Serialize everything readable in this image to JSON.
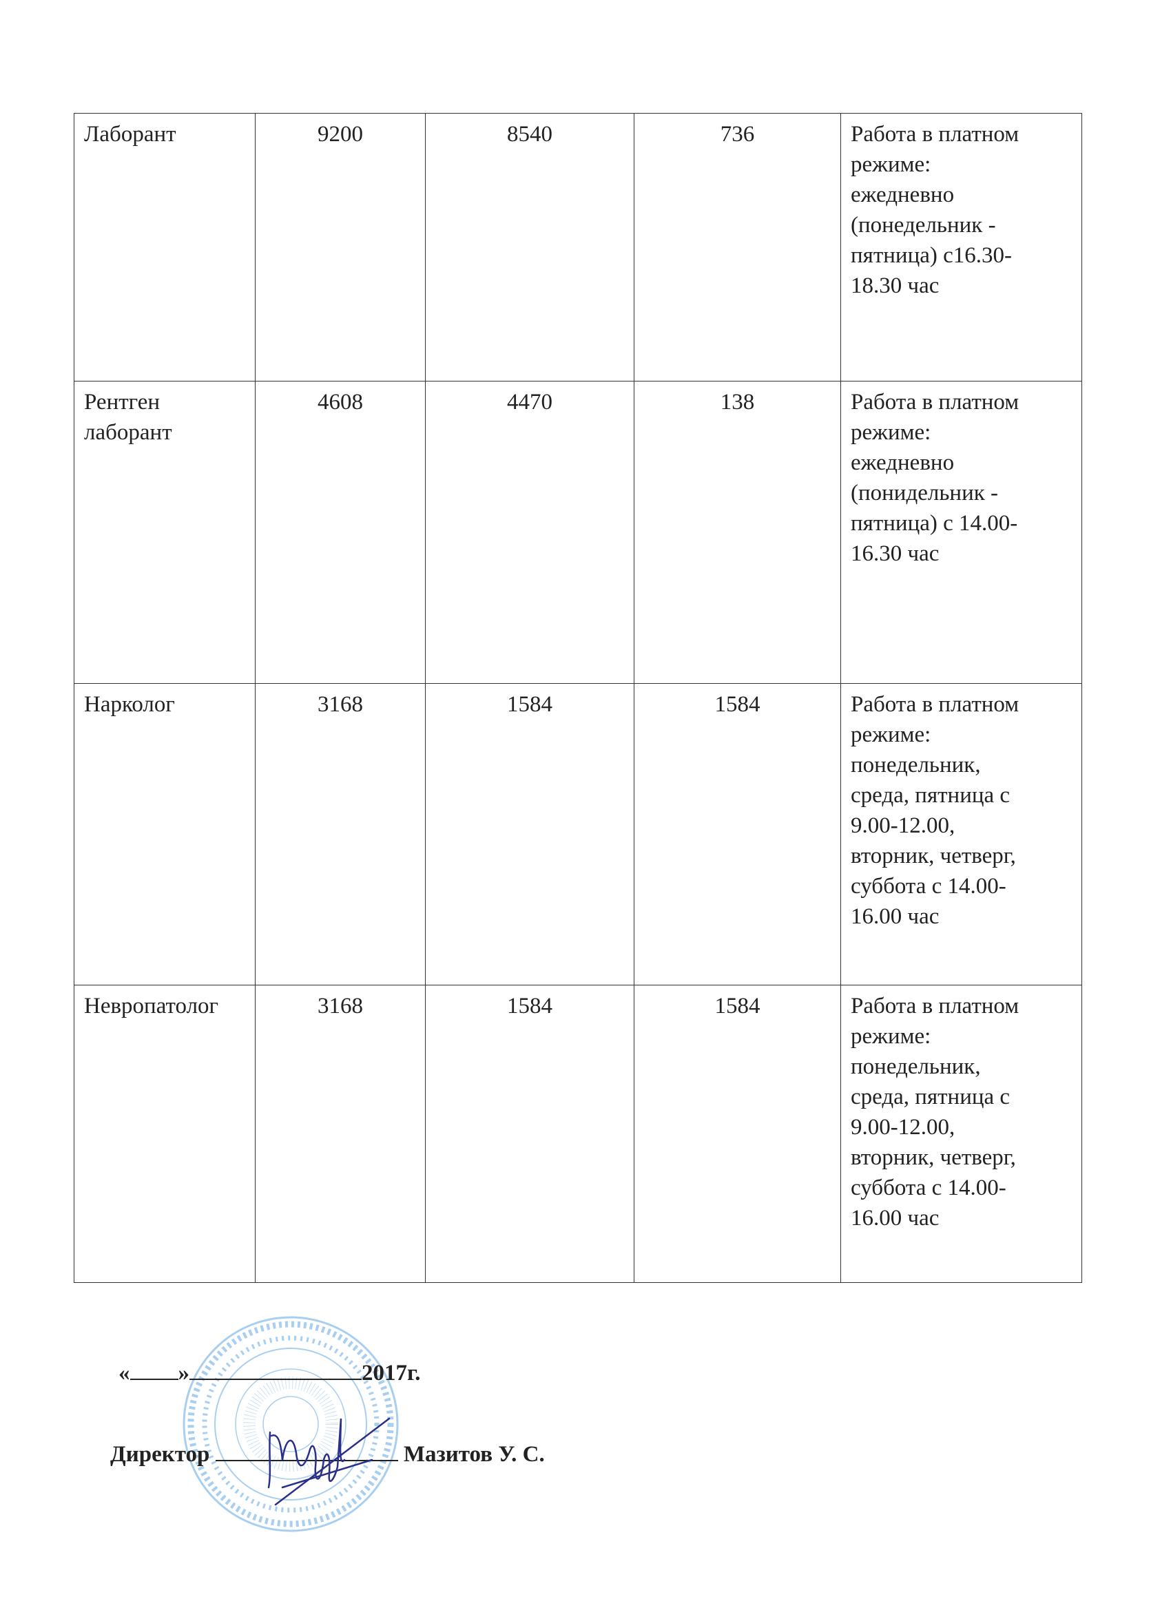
{
  "table": {
    "rows": [
      {
        "position": "Лаборант",
        "col2": "9200",
        "col3": "8540",
        "col4": "736",
        "schedule": "Работа в платном\nрежиме:\nежедневно\n(понедельник -\nпятница) с16.30-\n18.30 час"
      },
      {
        "position": "Рентген\nлаборант",
        "col2": "4608",
        "col3": "4470",
        "col4": "138",
        "schedule": "Работа в платном\nрежиме:\nежедневно\n(понидельник -\nпятница) с 14.00-\n16.30 час"
      },
      {
        "position": "Нарколог",
        "col2": "3168",
        "col3": "1584",
        "col4": "1584",
        "schedule": "Работа в платном\nрежиме:\nпонедельник,\nсреда, пятница с\n9.00-12.00,\nвторник, четверг,\nсуббота с 14.00-\n16.00 час"
      },
      {
        "position": "Невропатолог",
        "col2": "3168",
        "col3": "1584",
        "col4": "1584",
        "schedule": "Работа в платном\nрежиме:\nпонедельник,\nсреда, пятница с\n9.00-12.00,\nвторник, четверг,\nсуббота с 14.00-\n16.00 час"
      }
    ]
  },
  "footer": {
    "date_open_quote": "«",
    "date_close_quote": "»",
    "date_year": "2017г.",
    "director_label": "Директор",
    "director_name": "Мазитов У. С."
  },
  "stamp": {
    "text": "ҚАРАҒАНДЫ ОБЛЫСЫ ДЕНСАУЛЫҚ САҚТАУ БАСҚАРМАСЫНЫҢ «... АУДАНДЫҚ ОРТАЛЫҚ АУРУХАНАСЫ» КОММУНАЛДЫҚ МЕМЛЕКЕТТІК ҚАЗЫНАЛЫҚ КӘСІПОРНЫ",
    "color": "#6aa8e0"
  },
  "signature": {
    "color": "#2a2f8a"
  }
}
